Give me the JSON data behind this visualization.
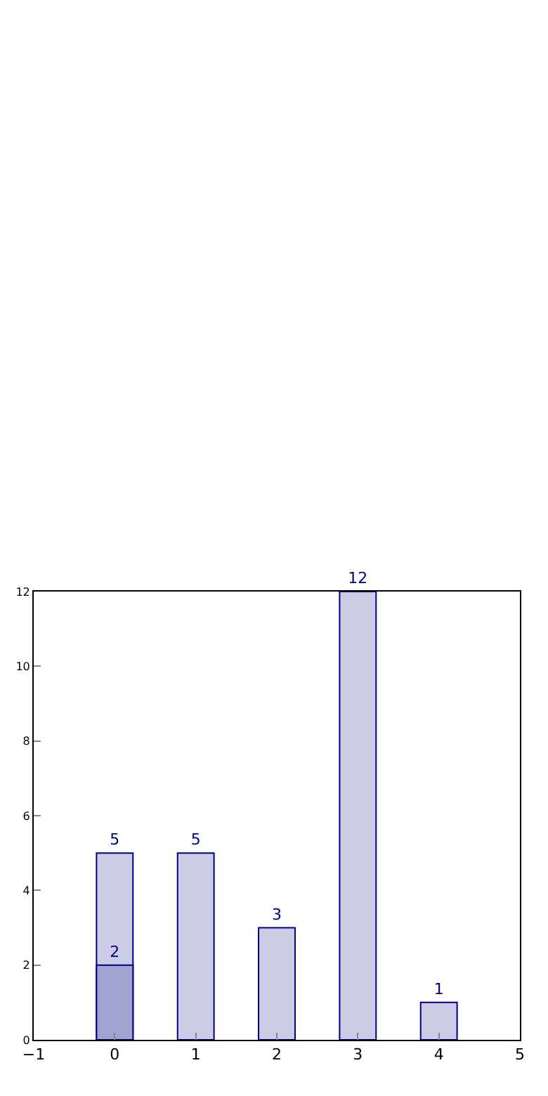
{
  "chart_data": {
    "type": "bar",
    "x": [
      0,
      1,
      2,
      3,
      4
    ],
    "series": [
      {
        "color": "#ccccE6",
        "values": [
          5,
          5,
          3,
          12,
          1
        ]
      },
      {
        "color": "#a3a3d1",
        "x": [
          0
        ],
        "values": [
          2
        ]
      }
    ],
    "xlim": [
      -1,
      5
    ],
    "xticks": [
      {
        "value": -1,
        "label": "−1"
      },
      0,
      1,
      2,
      3,
      4,
      5
    ],
    "ylim": [
      0,
      12
    ],
    "yticks": [
      0,
      2,
      4,
      6,
      8,
      10,
      12
    ],
    "data_labels": true
  }
}
